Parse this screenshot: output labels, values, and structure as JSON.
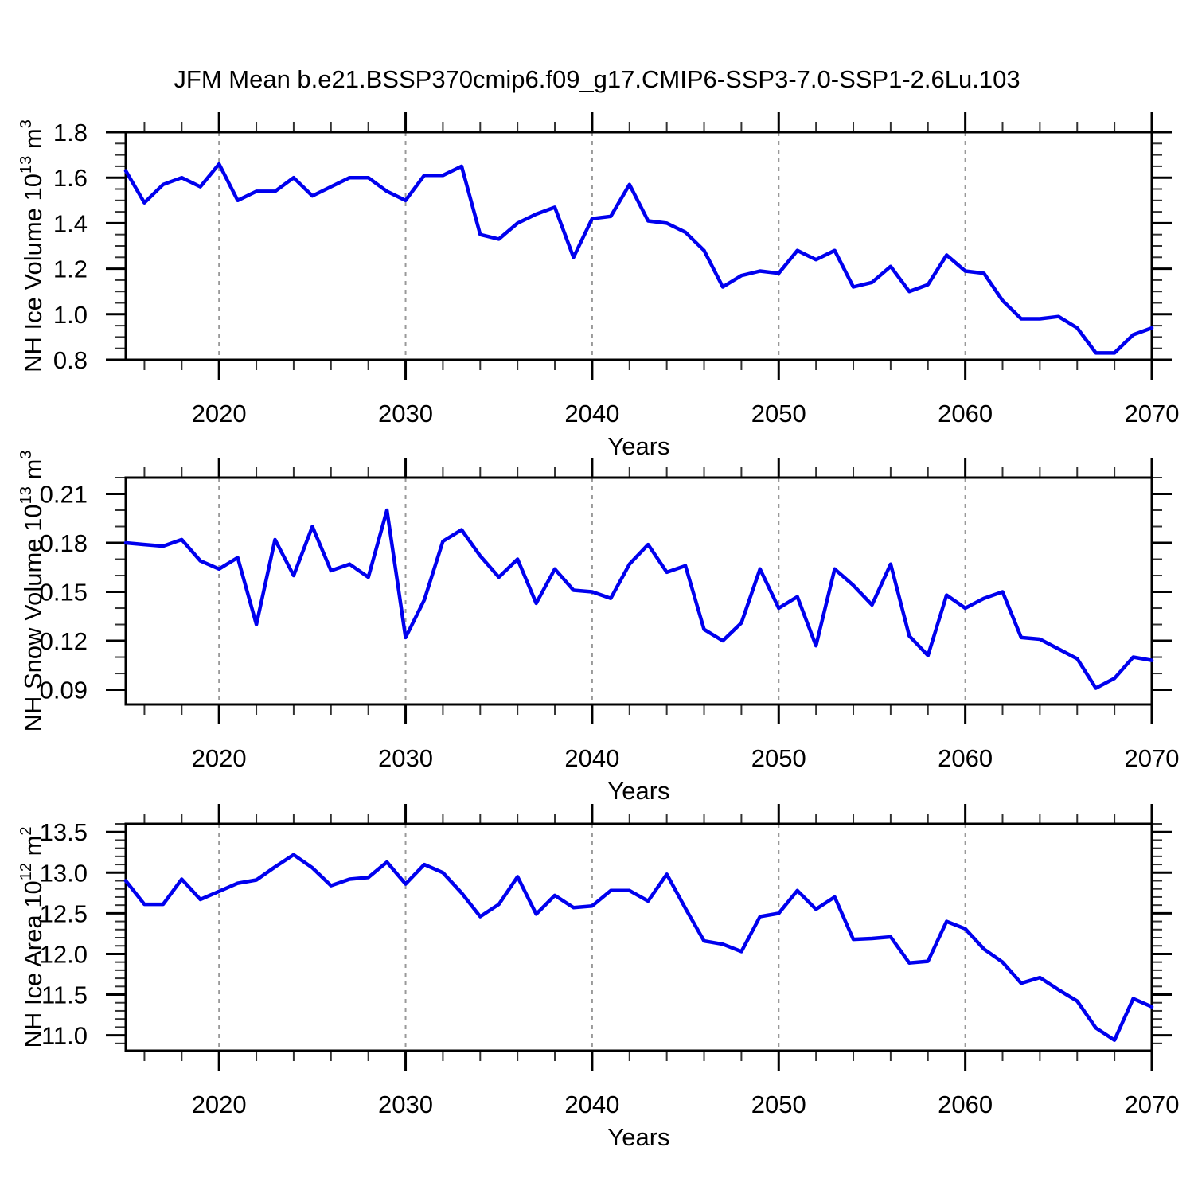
{
  "chart_data": {
    "type": "line",
    "title": "JFM Mean b.e21.BSSP370cmip6.f09_g17.CMIP6-SSP3-7.0-SSP1-2.6Lu.103",
    "xlabel": "Years",
    "x_start": 2015,
    "x_end": 2070,
    "years": [
      2015,
      2016,
      2017,
      2018,
      2019,
      2020,
      2021,
      2022,
      2023,
      2024,
      2025,
      2026,
      2027,
      2028,
      2029,
      2030,
      2031,
      2032,
      2033,
      2034,
      2035,
      2036,
      2037,
      2038,
      2039,
      2040,
      2041,
      2042,
      2043,
      2044,
      2045,
      2046,
      2047,
      2048,
      2049,
      2050,
      2051,
      2052,
      2053,
      2054,
      2055,
      2056,
      2057,
      2058,
      2059,
      2060,
      2061,
      2062,
      2063,
      2064,
      2065,
      2066,
      2067,
      2068,
      2069,
      2070
    ],
    "xticks": {
      "major": [
        2020,
        2030,
        2040,
        2050,
        2060,
        2070
      ],
      "major_labels": [
        "2020",
        "2030",
        "2040",
        "2050",
        "2060",
        "2070"
      ],
      "minor_step": 2,
      "gridlines": [
        2020,
        2030,
        2040,
        2050,
        2060
      ]
    },
    "line_color": "#0000ee",
    "grid_color": "#999999",
    "legend": "none",
    "grid": "vertical-dashed-at-decades",
    "panels": [
      {
        "name": "nh-ice-volume",
        "ylabel_text": "NH Ice Volume 10^13 m^3",
        "ylabel": [
          {
            "t": "NH Ice Volume 10"
          },
          {
            "t": "13",
            "sup": true
          },
          {
            "t": " m"
          },
          {
            "t": "3",
            "sup": true
          }
        ],
        "ylim": [
          0.8,
          1.8
        ],
        "yticks": {
          "major": [
            0.8,
            1.0,
            1.2,
            1.4,
            1.6,
            1.8
          ],
          "labels": [
            "0.8",
            "1.0",
            "1.2",
            "1.4",
            "1.6",
            "1.8"
          ],
          "minor_step": 0.05
        },
        "values": [
          1.63,
          1.49,
          1.57,
          1.6,
          1.56,
          1.66,
          1.5,
          1.54,
          1.54,
          1.6,
          1.52,
          1.56,
          1.6,
          1.6,
          1.54,
          1.5,
          1.61,
          1.61,
          1.65,
          1.35,
          1.33,
          1.4,
          1.44,
          1.47,
          1.25,
          1.42,
          1.43,
          1.57,
          1.41,
          1.4,
          1.36,
          1.28,
          1.12,
          1.17,
          1.19,
          1.18,
          1.28,
          1.24,
          1.28,
          1.12,
          1.14,
          1.21,
          1.1,
          1.13,
          1.26,
          1.19,
          1.18,
          1.06,
          0.98,
          0.98,
          0.99,
          0.94,
          0.83,
          0.83,
          0.91,
          0.94
        ]
      },
      {
        "name": "nh-snow-volume",
        "ylabel_text": "NH Snow Volume 10^13 m^3",
        "ylabel": [
          {
            "t": "NH Snow Volume 10"
          },
          {
            "t": "13",
            "sup": true
          },
          {
            "t": " m"
          },
          {
            "t": "3",
            "sup": true
          }
        ],
        "ylim": [
          0.081,
          0.22
        ],
        "yticks": {
          "major": [
            0.09,
            0.12,
            0.15,
            0.18,
            0.21
          ],
          "labels": [
            "0.09",
            "0.12",
            "0.15",
            "0.18",
            "0.21"
          ],
          "minor_step": 0.01
        },
        "values": [
          0.18,
          0.179,
          0.178,
          0.182,
          0.169,
          0.164,
          0.171,
          0.13,
          0.182,
          0.16,
          0.19,
          0.163,
          0.167,
          0.159,
          0.2,
          0.122,
          0.145,
          0.181,
          0.188,
          0.172,
          0.159,
          0.17,
          0.143,
          0.164,
          0.151,
          0.15,
          0.146,
          0.167,
          0.179,
          0.162,
          0.166,
          0.127,
          0.12,
          0.131,
          0.164,
          0.14,
          0.147,
          0.117,
          0.164,
          0.154,
          0.142,
          0.167,
          0.123,
          0.111,
          0.148,
          0.14,
          0.146,
          0.15,
          0.122,
          0.121,
          0.115,
          0.109,
          0.091,
          0.097,
          0.11,
          0.108
        ]
      },
      {
        "name": "nh-ice-area",
        "ylabel_text": "NH Ice Area 10^12 m^2",
        "ylabel": [
          {
            "t": "NH Ice Area 10"
          },
          {
            "t": "12",
            "sup": true
          },
          {
            "t": " m"
          },
          {
            "t": "2",
            "sup": true
          }
        ],
        "ylim": [
          10.81,
          13.6
        ],
        "yticks": {
          "major": [
            11.0,
            11.5,
            12.0,
            12.5,
            13.0,
            13.5
          ],
          "labels": [
            "11.0",
            "11.5",
            "12.0",
            "12.5",
            "13.0",
            "13.5"
          ],
          "minor_step": 0.1
        },
        "values": [
          12.9,
          12.61,
          12.61,
          12.92,
          12.67,
          12.77,
          12.87,
          12.91,
          13.07,
          13.22,
          13.06,
          12.84,
          12.92,
          12.94,
          13.13,
          12.86,
          13.1,
          13.0,
          12.75,
          12.46,
          12.61,
          12.95,
          12.49,
          12.72,
          12.57,
          12.59,
          12.78,
          12.78,
          12.65,
          12.98,
          12.56,
          12.16,
          12.12,
          12.03,
          12.46,
          12.5,
          12.78,
          12.55,
          12.7,
          12.18,
          12.19,
          12.21,
          11.89,
          11.91,
          12.4,
          12.31,
          12.06,
          11.9,
          11.64,
          11.71,
          11.56,
          11.42,
          11.09,
          10.94,
          11.45,
          11.35
        ]
      }
    ]
  }
}
